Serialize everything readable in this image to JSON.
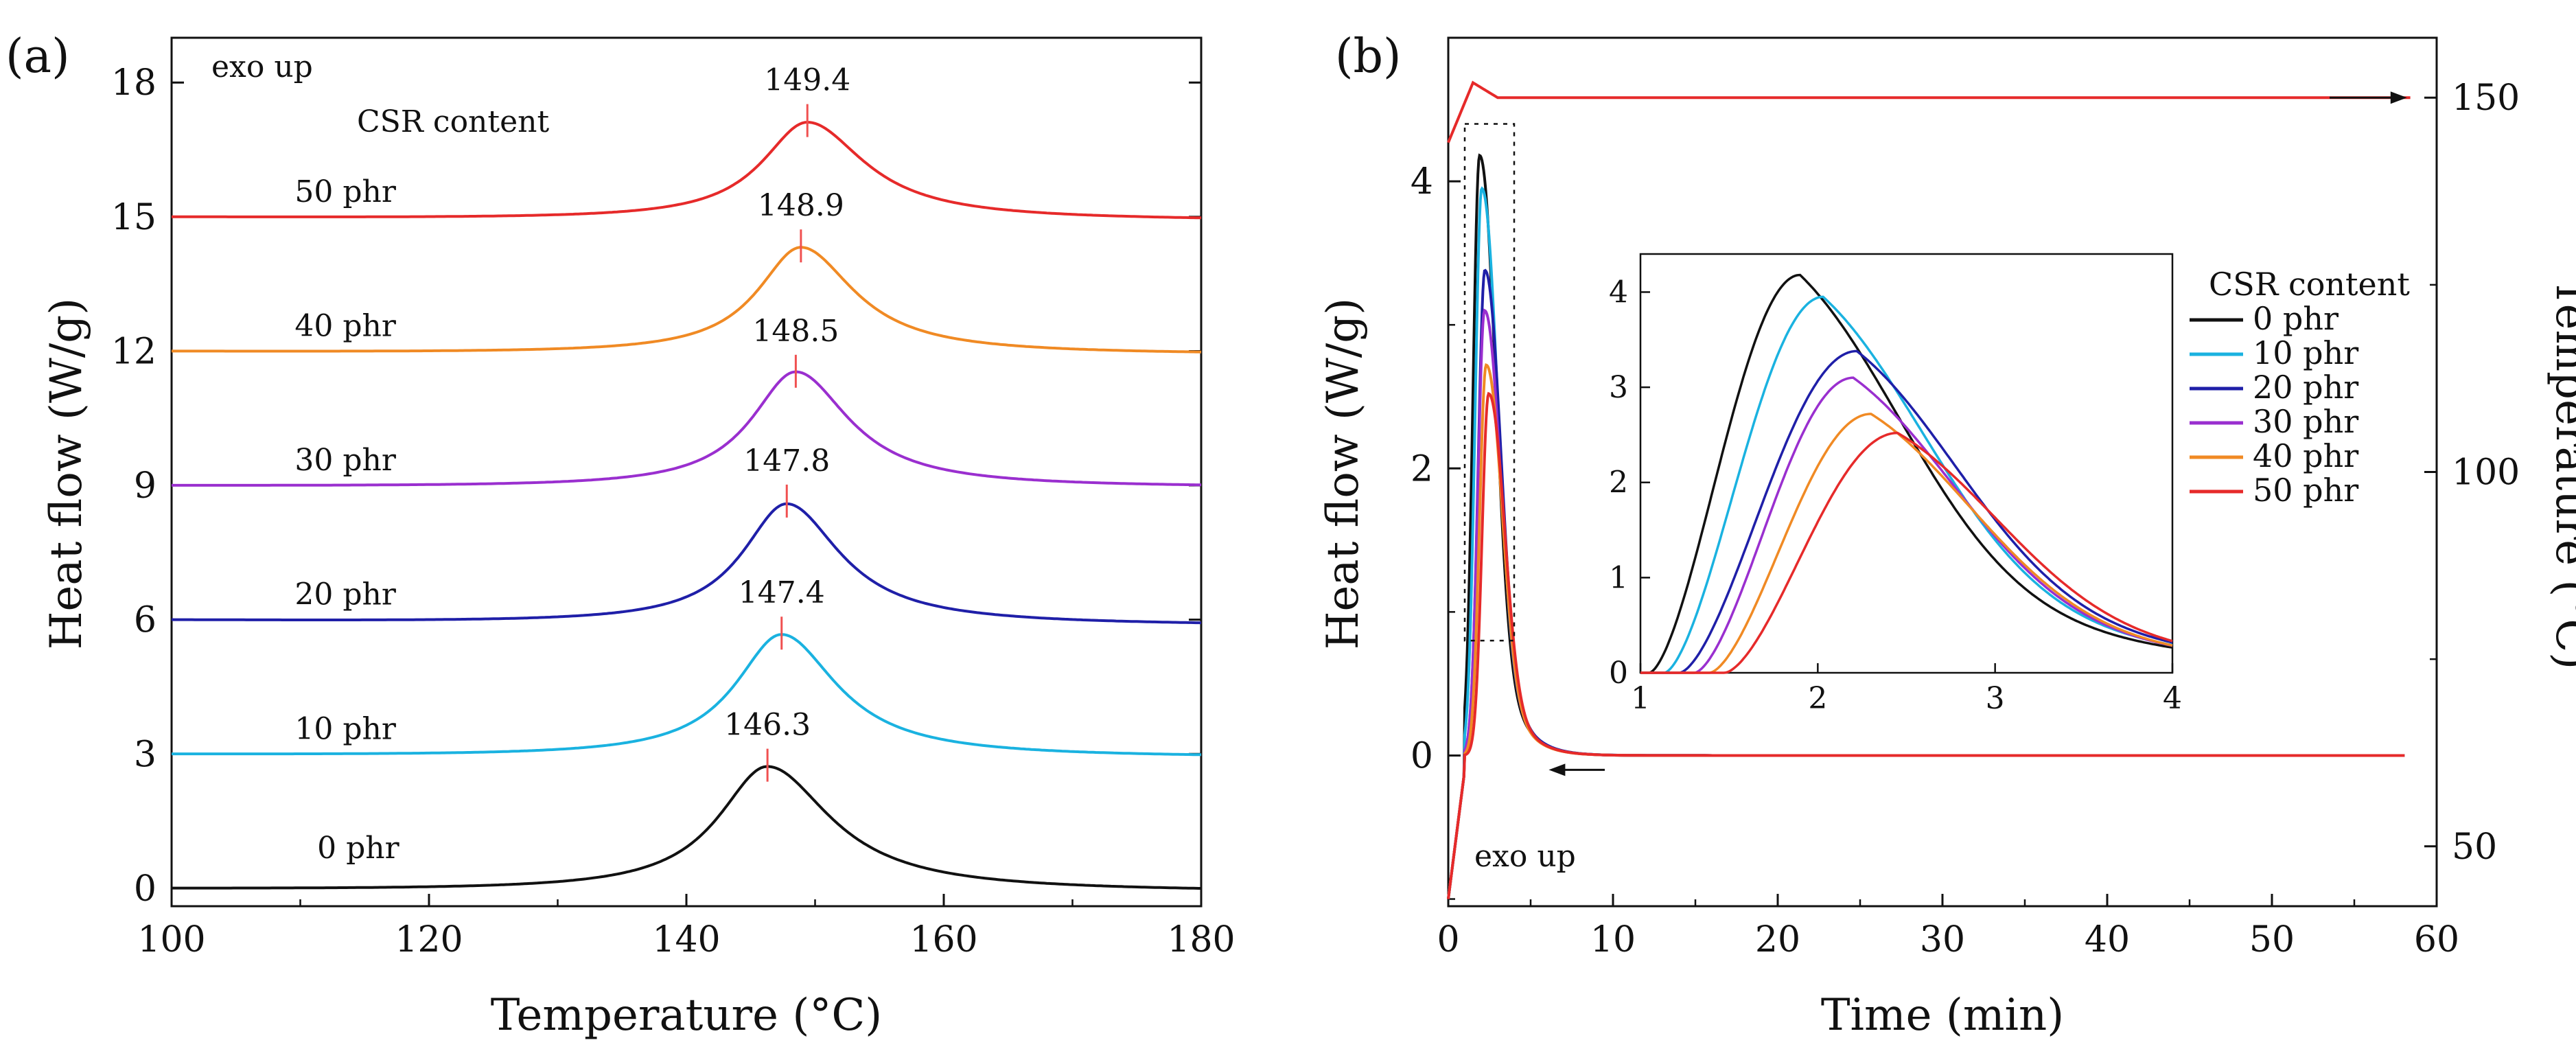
{
  "chart_data": [
    {
      "panel_label": "(a)",
      "type": "line",
      "xlabel": "Temperature (°C)",
      "ylabel": "Heat flow (W/g)",
      "xlim": [
        100,
        180
      ],
      "ylim": [
        -0.4,
        19
      ],
      "x_ticks": [
        100,
        120,
        140,
        160,
        180
      ],
      "y_ticks": [
        0,
        3,
        6,
        9,
        12,
        15,
        18
      ],
      "annotations": {
        "exo": "exo up",
        "legend_title": "CSR content"
      },
      "series": [
        {
          "name": "0 phr",
          "label": "0 phr",
          "color": "#111111",
          "offset": 0,
          "peak_x": 146.3,
          "peak_height": 2.75,
          "width_left": 5.0,
          "width_right": 6.4,
          "end_shift": -0.05,
          "peak_label": "146.3"
        },
        {
          "name": "10 phr",
          "label": "10 phr",
          "color": "#1ab2e0",
          "offset": 3,
          "peak_x": 147.4,
          "peak_height": 2.7,
          "width_left": 4.7,
          "width_right": 5.6,
          "end_shift": -0.05,
          "peak_label": "147.4"
        },
        {
          "name": "20 phr",
          "label": "20 phr",
          "color": "#1f1fa8",
          "offset": 6,
          "peak_x": 147.8,
          "peak_height": 2.65,
          "width_left": 4.5,
          "width_right": 5.4,
          "end_shift": -0.1,
          "peak_label": "147.8"
        },
        {
          "name": "30 phr",
          "label": "30 phr",
          "color": "#9a2fcf",
          "offset": 9,
          "peak_x": 148.5,
          "peak_height": 2.55,
          "width_left": 4.5,
          "width_right": 5.4,
          "end_shift": -0.02,
          "peak_label": "148.5"
        },
        {
          "name": "40 phr",
          "label": "40 phr",
          "color": "#f08a24",
          "offset": 12,
          "peak_x": 148.9,
          "peak_height": 2.35,
          "width_left": 4.4,
          "width_right": 5.4,
          "end_shift": -0.05,
          "peak_label": "148.9"
        },
        {
          "name": "50 phr",
          "label": "50 phr",
          "color": "#e62a2a",
          "offset": 15,
          "peak_x": 149.4,
          "peak_height": 2.15,
          "width_left": 4.6,
          "width_right": 5.8,
          "end_shift": -0.06,
          "peak_label": "149.4"
        }
      ]
    },
    {
      "panel_label": "(b)",
      "type": "line",
      "xlabel": "Time (min)",
      "ylabel": "Heat flow (W/g)",
      "ylabel_right": "Temperature (°C)",
      "xlim": [
        0,
        60
      ],
      "ylim": [
        -1.05,
        5.0
      ],
      "ylim_right": [
        42,
        158
      ],
      "x_ticks": [
        0,
        10,
        20,
        30,
        40,
        50,
        60
      ],
      "y_ticks": [
        0,
        2,
        4
      ],
      "y_ticks_right": [
        50,
        100,
        150
      ],
      "annotations": {
        "exo": "exo up"
      },
      "legend": {
        "title": "CSR content",
        "entries": [
          "0 phr",
          "10 phr",
          "20 phr",
          "30 phr",
          "40 phr",
          "50 phr"
        ]
      },
      "series": [
        {
          "name": "0 phr",
          "color": "#111111",
          "peak_time": 1.9,
          "peak_height": 4.18
        },
        {
          "name": "10 phr",
          "color": "#1ab2e0",
          "peak_time": 2.03,
          "peak_height": 3.95
        },
        {
          "name": "20 phr",
          "color": "#1f1fa8",
          "peak_time": 2.22,
          "peak_height": 3.38
        },
        {
          "name": "30 phr",
          "color": "#9a2fcf",
          "peak_time": 2.2,
          "peak_height": 3.1
        },
        {
          "name": "40 phr",
          "color": "#f08a24",
          "peak_time": 2.3,
          "peak_height": 2.72
        },
        {
          "name": "50 phr",
          "color": "#e62a2a",
          "peak_time": 2.45,
          "peak_height": 2.52
        }
      ],
      "temperature_series": {
        "start": 144,
        "plateau": 150,
        "overshoot": 152,
        "color": "#e62a2a"
      },
      "inset": {
        "xlim": [
          1,
          4
        ],
        "ylim": [
          0,
          4.4
        ],
        "x_ticks": [
          1,
          2,
          3,
          4
        ],
        "y_ticks": [
          0,
          1,
          2,
          3,
          4
        ]
      }
    }
  ]
}
